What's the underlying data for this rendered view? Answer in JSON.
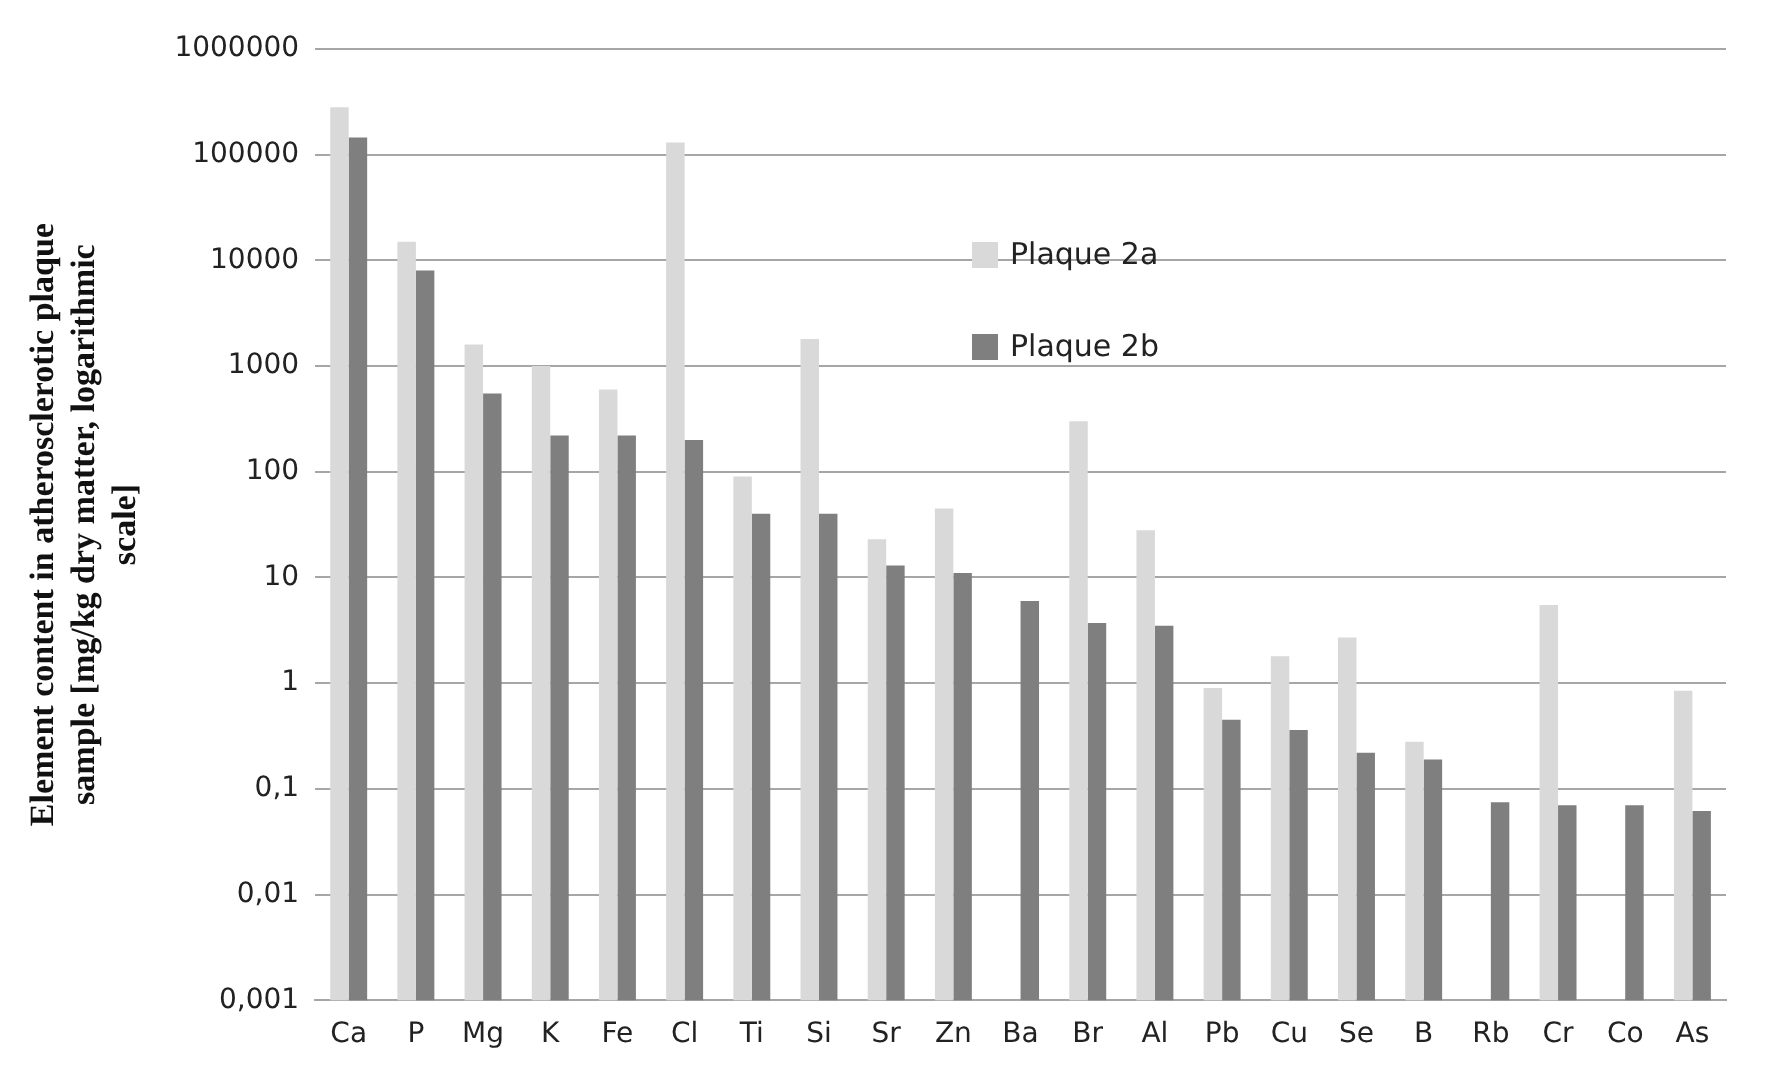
{
  "chart_data": {
    "type": "bar",
    "ylabel": "Element content in atherosclerotic plaque sample [mg/kg dry matter, logarithmic scale]",
    "categories": [
      "Ca",
      "P",
      "Mg",
      "K",
      "Fe",
      "Cl",
      "Ti",
      "Si",
      "Sr",
      "Zn",
      "Ba",
      "Br",
      "Al",
      "Pb",
      "Cu",
      "Se",
      "B",
      "Rb",
      "Cr",
      "Co",
      "As"
    ],
    "series": [
      {
        "name": "Plaque 2a",
        "color": "#d9d9d9",
        "values": [
          280000,
          15000,
          1600,
          1000,
          600,
          130000,
          90,
          1800,
          23,
          45,
          null,
          300,
          28,
          0.9,
          1.8,
          2.7,
          0.28,
          null,
          5.5,
          null,
          0.85
        ]
      },
      {
        "name": "Plaque 2b",
        "color": "#7f7f7f",
        "values": [
          145000,
          8000,
          550,
          220,
          220,
          200,
          40,
          40,
          13,
          11,
          6,
          3.7,
          3.5,
          0.45,
          0.36,
          0.22,
          0.19,
          0.075,
          0.07,
          0.07,
          0.062
        ]
      }
    ],
    "log": "y",
    "ylim": [
      0.001,
      1000000
    ],
    "yticks": [
      {
        "value": 0.001,
        "label": "0,001"
      },
      {
        "value": 0.01,
        "label": "0,01"
      },
      {
        "value": 0.1,
        "label": "0,1"
      },
      1,
      10,
      100,
      1000,
      10000,
      100000,
      1000000
    ],
    "grid": "y",
    "legend": "top"
  }
}
